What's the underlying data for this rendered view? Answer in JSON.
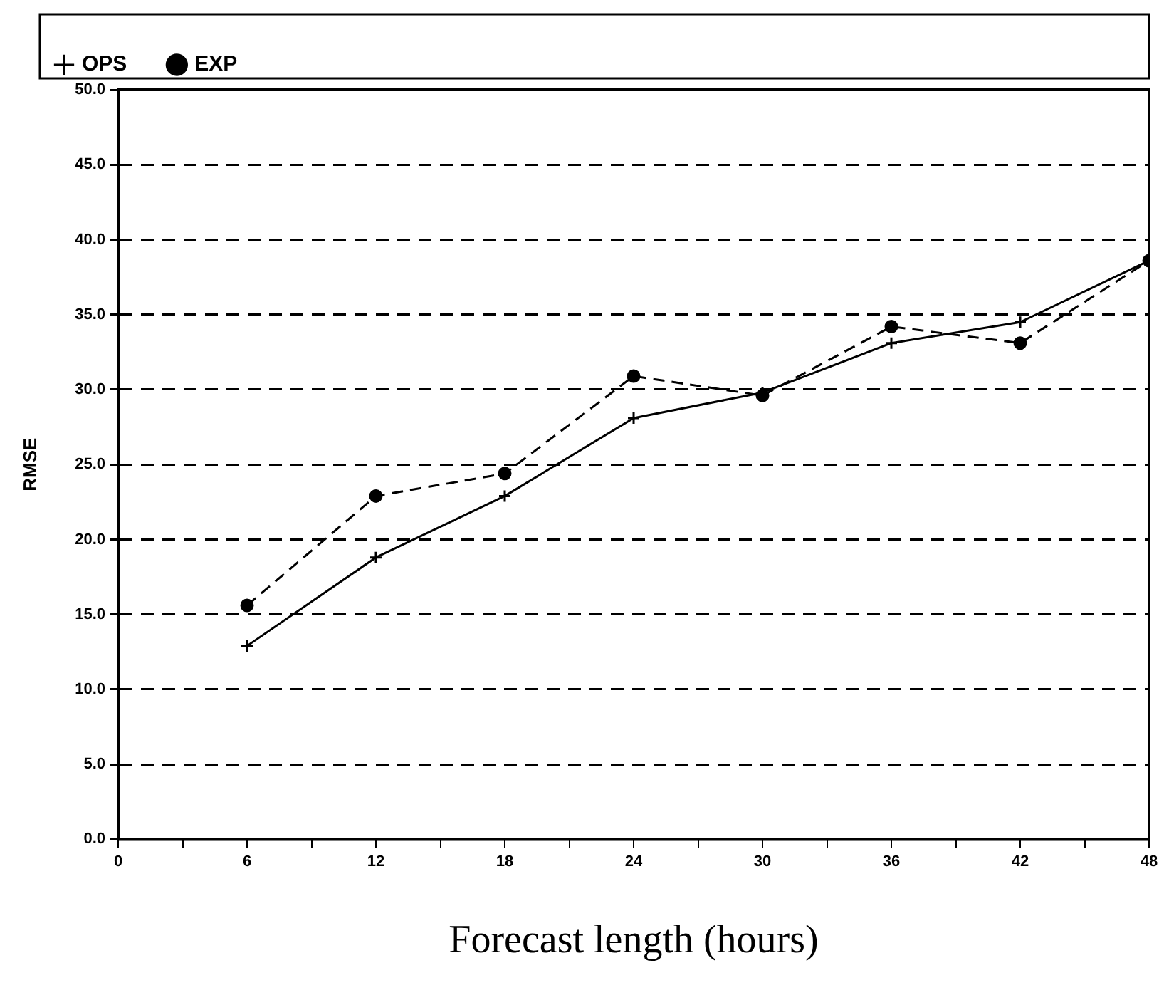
{
  "chart_data": {
    "type": "line",
    "xlabel": "Forecast length (hours)",
    "ylabel": "RMSE",
    "x": [
      6,
      12,
      18,
      24,
      30,
      36,
      42,
      48
    ],
    "series": [
      {
        "name": "OPS",
        "color": "#000000",
        "marker": "cross",
        "line_style": "solid",
        "values": [
          12.9,
          18.8,
          22.9,
          28.1,
          29.8,
          33.1,
          34.5,
          38.6
        ]
      },
      {
        "name": "EXP",
        "color": "#000000",
        "marker": "circle",
        "line_style": "dashed",
        "values": [
          15.6,
          22.9,
          24.4,
          30.9,
          29.6,
          34.2,
          33.1,
          38.6
        ]
      }
    ],
    "xlim": [
      0,
      48
    ],
    "xticks": [
      0,
      {
        "value": 3,
        "label": null
      },
      6,
      {
        "value": 9,
        "label": null
      },
      12,
      {
        "value": 15,
        "label": null
      },
      18,
      {
        "value": 21,
        "label": null
      },
      24,
      {
        "value": 27,
        "label": null
      },
      30,
      {
        "value": 33,
        "label": null
      },
      36,
      {
        "value": 39,
        "label": null
      },
      42,
      {
        "value": 45,
        "label": null
      },
      48
    ],
    "ylim": [
      0,
      50
    ],
    "yticks": [
      {
        "value": 0,
        "label": "0.0"
      },
      {
        "value": 5,
        "label": "5.0"
      },
      {
        "value": 10,
        "label": "10.0"
      },
      {
        "value": 15,
        "label": "15.0"
      },
      {
        "value": 20,
        "label": "20.0"
      },
      {
        "value": 25,
        "label": "25.0"
      },
      {
        "value": 30,
        "label": "30.0"
      },
      {
        "value": 35,
        "label": "35.0"
      },
      {
        "value": 40,
        "label": "40.0"
      },
      {
        "value": 45,
        "label": "45.0"
      },
      {
        "value": 50,
        "label": "50.0"
      }
    ],
    "grid": "y",
    "legend": "top"
  }
}
